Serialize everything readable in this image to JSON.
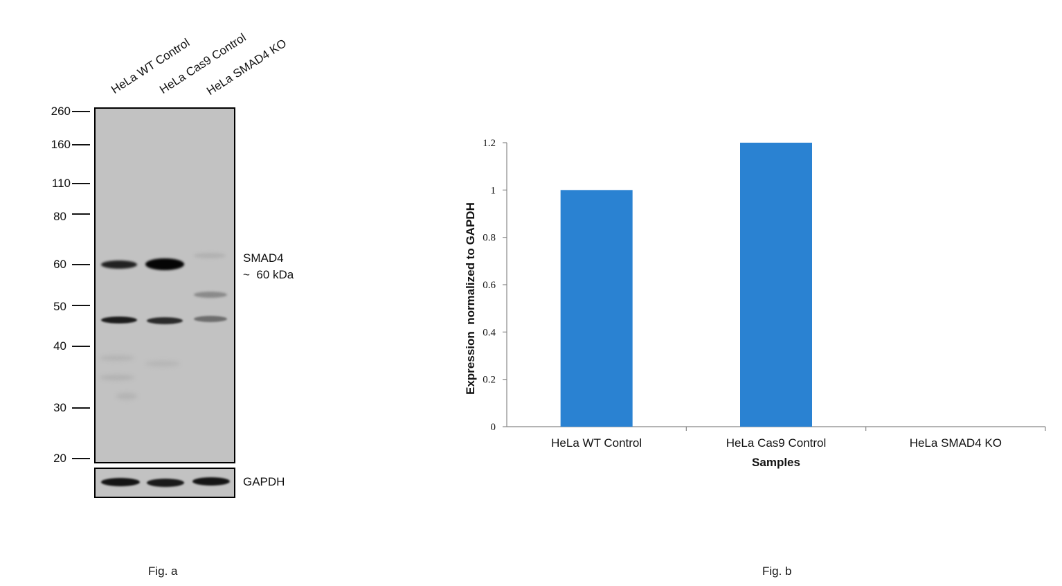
{
  "figure_a": {
    "lanes": [
      "HeLa WT Control",
      "HeLa Cas9 Control",
      "HeLa SMAD4 KO"
    ],
    "markers": [
      "260",
      "160",
      "110",
      "80",
      "60",
      "50",
      "40",
      "30",
      "20"
    ],
    "target_label": "SMAD4",
    "target_size": "~  60 kDa",
    "loading_control": "GAPDH",
    "caption": "Fig. a"
  },
  "chart_data": {
    "type": "bar",
    "categories": [
      "HeLa WT Control",
      "HeLa Cas9 Control",
      "HeLa SMAD4 KO"
    ],
    "values": [
      1.0,
      1.2,
      0.0
    ],
    "xlabel": "Samples",
    "ylabel": "Expression  normalized to GAPDH",
    "ylim": [
      0,
      1.2
    ],
    "yticks": [
      "0",
      "0.2",
      "0.4",
      "0.6",
      "0.8",
      "1",
      "1.2"
    ],
    "bar_color": "#2a82d2",
    "grid": false,
    "legend": "none"
  },
  "figure_b": {
    "caption": "Fig. b"
  }
}
